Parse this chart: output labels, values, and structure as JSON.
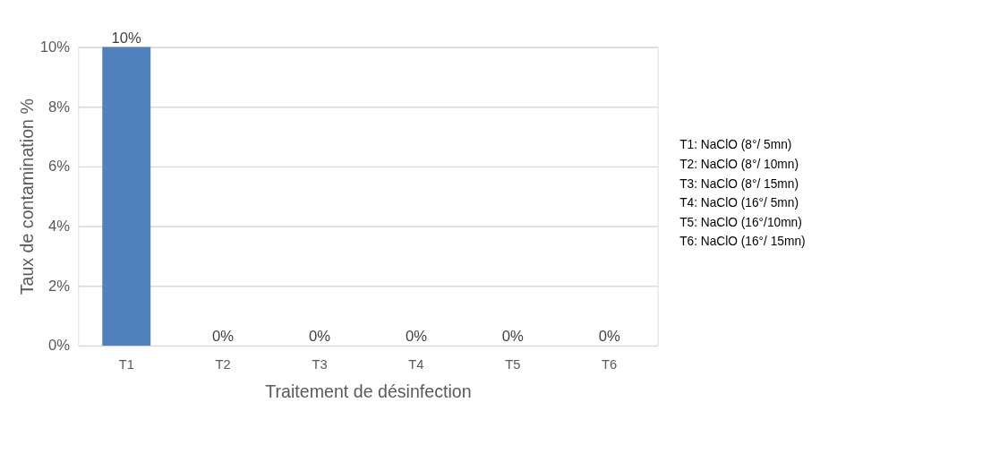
{
  "chart_data": {
    "type": "bar",
    "categories": [
      "T1",
      "T2",
      "T3",
      "T4",
      "T5",
      "T6"
    ],
    "values": [
      10,
      0,
      0,
      0,
      0,
      0
    ],
    "value_labels": [
      "10%",
      "0%",
      "0%",
      "0%",
      "0%",
      "0%"
    ],
    "color": "#4f81bd",
    "xlabel": "Traitement de désinfection",
    "ylabel": "Taux de contamination %",
    "ylim": [
      0,
      10
    ],
    "yticks": [
      {
        "value": 0,
        "label": "0%"
      },
      {
        "value": 2,
        "label": "2%"
      },
      {
        "value": 4,
        "label": "4%"
      },
      {
        "value": 6,
        "label": "6%"
      },
      {
        "value": 8,
        "label": "8%"
      },
      {
        "value": 10,
        "label": "10%"
      }
    ],
    "grid": "y",
    "annotations": [
      "T1: NaClO  (8°/ 5mn)",
      "T2: NaClO  (8°/ 10mn)",
      "T3: NaClO (8°/ 15mn)",
      "T4: NaClO (16°/ 5mn)",
      "T5: NaClO (16°/10mn)",
      "T6: NaClO (16°/ 15mn)"
    ]
  }
}
